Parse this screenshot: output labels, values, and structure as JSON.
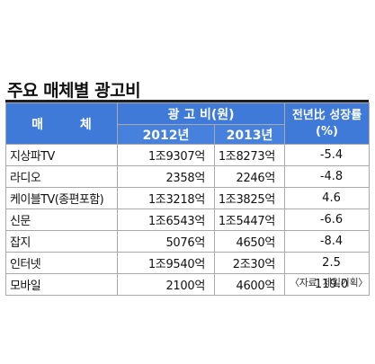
{
  "title": "주요 매체별 광고비",
  "header": {
    "media": "매 체",
    "ad_cost": "광 고 비(원)",
    "year1": "2012년",
    "year2": "2013년",
    "growth_line1": "전년比 성장률",
    "growth_line2": "(%)"
  },
  "chart_data": {
    "type": "table",
    "title": "주요 매체별 광고비",
    "columns": [
      "매 체",
      "2012년",
      "2013년",
      "전년比 성장률 (%)"
    ],
    "rows": [
      {
        "media": "지상파TV",
        "y2012": "1조9307억",
        "y2013": "1조8273억",
        "growth": "-5.4"
      },
      {
        "media": "라디오",
        "y2012": "2358억",
        "y2013": "2246억",
        "growth": "-4.8"
      },
      {
        "media": "케이블TV(종편포함)",
        "y2012": "1조3218억",
        "y2013": "1조3825억",
        "growth": "4.6"
      },
      {
        "media": "신문",
        "y2012": "1조6543억",
        "y2013": "1조5447억",
        "growth": "-6.6"
      },
      {
        "media": "잡지",
        "y2012": "5076억",
        "y2013": "4650억",
        "growth": "-8.4"
      },
      {
        "media": "인터넷",
        "y2012": "1조9540억",
        "y2013": "2조30억",
        "growth": "2.5"
      },
      {
        "media": "모바일",
        "y2012": "2100억",
        "y2013": "4600억",
        "growth": "119.0"
      }
    ]
  },
  "source": "〈자료: 제일기획〉"
}
